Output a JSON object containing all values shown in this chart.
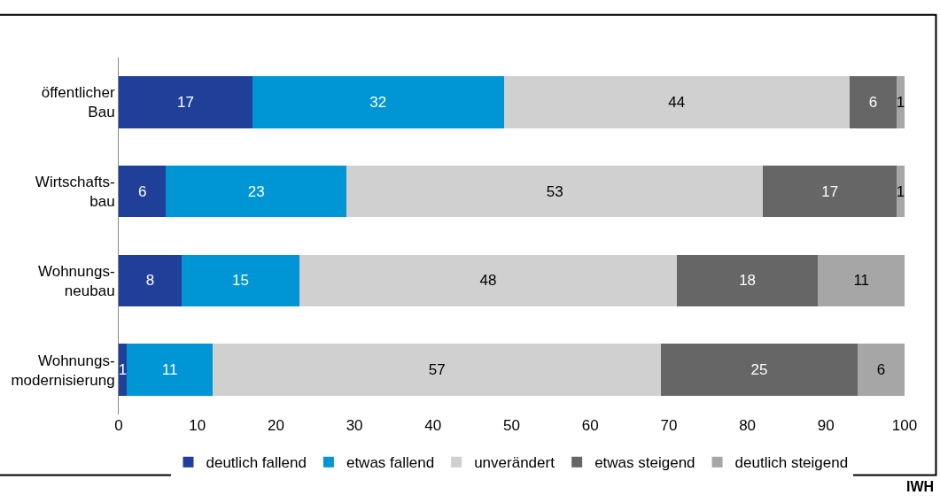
{
  "chart_data": {
    "type": "bar",
    "orientation": "horizontal",
    "stacked": true,
    "data_labels": true,
    "legend": "bottom",
    "categories": [
      "öffentlicher\nBau",
      "Wirtschafts-\nbau",
      "Wohnungs-\nneubau",
      "Wohnungs-\nmodernisierung"
    ],
    "series": [
      {
        "name": "deutlich fallend",
        "color": "#1f3f99",
        "values": [
          17,
          6,
          8,
          1
        ]
      },
      {
        "name": "etwas fallend",
        "color": "#0096d6",
        "values": [
          32,
          23,
          15,
          11
        ]
      },
      {
        "name": "unverändert",
        "color": "#d0d0d0",
        "values": [
          44,
          53,
          48,
          57
        ]
      },
      {
        "name": "etwas steigend",
        "color": "#666666",
        "values": [
          6,
          17,
          18,
          25
        ]
      },
      {
        "name": "deutlich steigend",
        "color": "#a6a6a6",
        "values": [
          1,
          1,
          11,
          6
        ]
      }
    ],
    "xlim": [
      0,
      100
    ],
    "xticks": [
      0,
      10,
      20,
      30,
      40,
      50,
      60,
      70,
      80,
      90,
      100
    ],
    "annotations": [
      "IWH"
    ]
  }
}
